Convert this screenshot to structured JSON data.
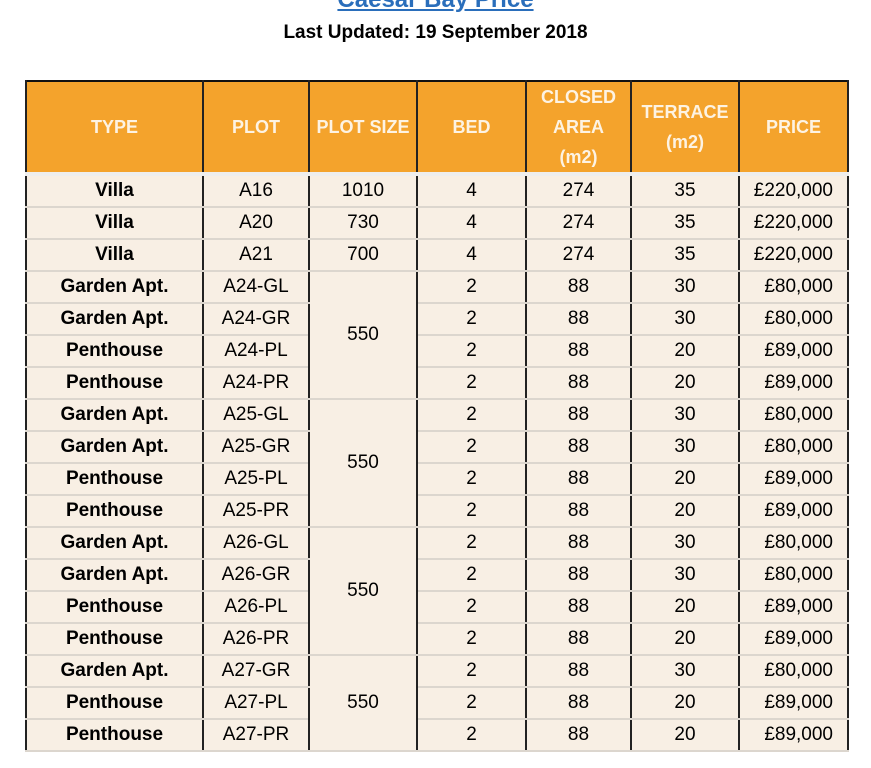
{
  "title": "Caesar Bay Price",
  "subtitle": "Last Updated: 19 September 2018",
  "columns": [
    "TYPE",
    "PLOT",
    "PLOT SIZE",
    "BED",
    "CLOSED AREA (m2)",
    "TERRACE (m2)",
    "PRICE"
  ],
  "rows": [
    {
      "type": "Villa",
      "plot": "A16",
      "plot_size": "1010",
      "bed": "4",
      "closed": "274",
      "terrace": "35",
      "price": "£220,000"
    },
    {
      "type": "Villa",
      "plot": "A20",
      "plot_size": "730",
      "bed": "4",
      "closed": "274",
      "terrace": "35",
      "price": "£220,000"
    },
    {
      "type": "Villa",
      "plot": "A21",
      "plot_size": "700",
      "bed": "4",
      "closed": "274",
      "terrace": "35",
      "price": "£220,000"
    },
    {
      "type": "Garden Apt.",
      "plot": "A24-GL",
      "plot_size": "550",
      "span": 4,
      "bed": "2",
      "closed": "88",
      "terrace": "30",
      "price": "£80,000"
    },
    {
      "type": "Garden Apt.",
      "plot": "A24-GR",
      "bed": "2",
      "closed": "88",
      "terrace": "30",
      "price": "£80,000"
    },
    {
      "type": "Penthouse",
      "plot": "A24-PL",
      "bed": "2",
      "closed": "88",
      "terrace": "20",
      "price": "£89,000"
    },
    {
      "type": "Penthouse",
      "plot": "A24-PR",
      "bed": "2",
      "closed": "88",
      "terrace": "20",
      "price": "£89,000"
    },
    {
      "type": "Garden Apt.",
      "plot": "A25-GL",
      "plot_size": "550",
      "span": 4,
      "bed": "2",
      "closed": "88",
      "terrace": "30",
      "price": "£80,000"
    },
    {
      "type": "Garden Apt.",
      "plot": "A25-GR",
      "bed": "2",
      "closed": "88",
      "terrace": "30",
      "price": "£80,000"
    },
    {
      "type": "Penthouse",
      "plot": "A25-PL",
      "bed": "2",
      "closed": "88",
      "terrace": "20",
      "price": "£89,000"
    },
    {
      "type": "Penthouse",
      "plot": "A25-PR",
      "bed": "2",
      "closed": "88",
      "terrace": "20",
      "price": "£89,000"
    },
    {
      "type": "Garden Apt.",
      "plot": "A26-GL",
      "plot_size": "550",
      "span": 4,
      "bed": "2",
      "closed": "88",
      "terrace": "30",
      "price": "£80,000"
    },
    {
      "type": "Garden Apt.",
      "plot": "A26-GR",
      "bed": "2",
      "closed": "88",
      "terrace": "30",
      "price": "£80,000"
    },
    {
      "type": "Penthouse",
      "plot": "A26-PL",
      "bed": "2",
      "closed": "88",
      "terrace": "20",
      "price": "£89,000"
    },
    {
      "type": "Penthouse",
      "plot": "A26-PR",
      "bed": "2",
      "closed": "88",
      "terrace": "20",
      "price": "£89,000"
    },
    {
      "type": "Garden Apt.",
      "plot": "A27-GR",
      "plot_size": "550",
      "span": 3,
      "bed": "2",
      "closed": "88",
      "terrace": "30",
      "price": "£80,000"
    },
    {
      "type": "Penthouse",
      "plot": "A27-PL",
      "bed": "2",
      "closed": "88",
      "terrace": "20",
      "price": "£89,000"
    },
    {
      "type": "Penthouse",
      "plot": "A27-PR",
      "bed": "2",
      "closed": "88",
      "terrace": "20",
      "price": "£89,000"
    }
  ]
}
